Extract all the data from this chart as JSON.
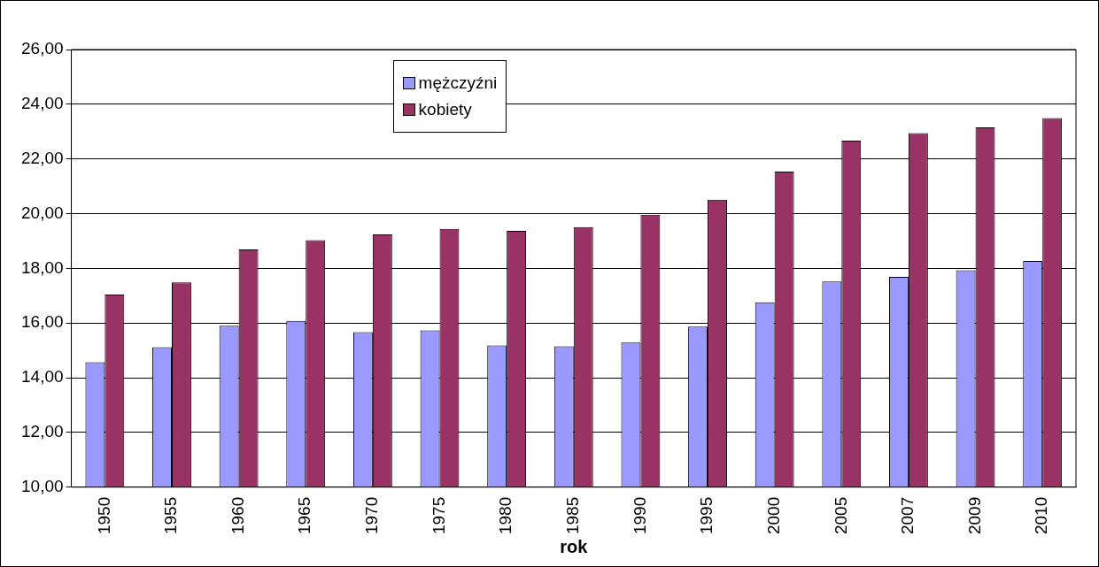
{
  "chart_data": {
    "type": "bar",
    "xlabel": "rok",
    "categories": [
      "1950",
      "1955",
      "1960",
      "1965",
      "1970",
      "1975",
      "1980",
      "1985",
      "1990",
      "1995",
      "2000",
      "2005",
      "2007",
      "2009",
      "2010"
    ],
    "series": [
      {
        "name": "mężczyźni",
        "color": "#9999ff",
        "values": [
          14.57,
          15.12,
          15.9,
          16.08,
          15.67,
          15.73,
          15.18,
          15.15,
          15.29,
          15.87,
          16.76,
          17.52,
          17.69,
          17.93,
          18.27
        ]
      },
      {
        "name": "kobiety",
        "color": "#993366",
        "values": [
          17.04,
          17.49,
          18.69,
          19.03,
          19.24,
          19.44,
          19.37,
          19.51,
          19.96,
          20.51,
          21.54,
          22.67,
          22.94,
          23.15,
          23.49
        ]
      }
    ],
    "ylim": [
      10,
      26
    ],
    "yticks": [
      {
        "value": 10,
        "label": "10,00"
      },
      {
        "value": 12,
        "label": "12,00"
      },
      {
        "value": 14,
        "label": "14,00"
      },
      {
        "value": 16,
        "label": "16,00"
      },
      {
        "value": 18,
        "label": "18,00"
      },
      {
        "value": 20,
        "label": "20,00"
      },
      {
        "value": 22,
        "label": "22,00"
      },
      {
        "value": 24,
        "label": "24,00"
      },
      {
        "value": 26,
        "label": "26,00"
      }
    ],
    "grid": "y",
    "legend": "top"
  }
}
